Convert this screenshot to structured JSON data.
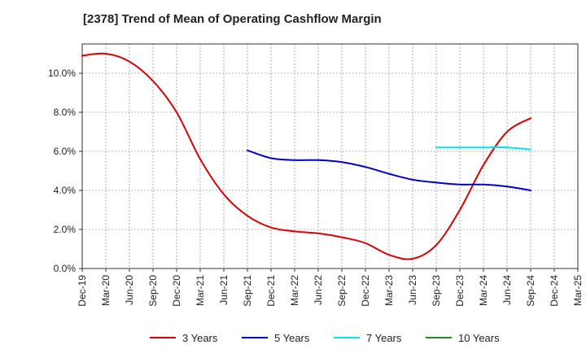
{
  "chart_data": {
    "type": "line",
    "title": "[2378]  Trend of Mean of Operating Cashflow Margin",
    "xlabel": "",
    "ylabel": "",
    "x_ticks": [
      "Dec-19",
      "Mar-20",
      "Jun-20",
      "Sep-20",
      "Dec-20",
      "Mar-21",
      "Jun-21",
      "Sep-21",
      "Dec-21",
      "Mar-22",
      "Jun-22",
      "Sep-22",
      "Dec-22",
      "Mar-23",
      "Jun-23",
      "Sep-23",
      "Dec-23",
      "Mar-24",
      "Jun-24",
      "Sep-24",
      "Dec-24",
      "Mar-25"
    ],
    "y_ticks": [
      "0.0%",
      "2.0%",
      "4.0%",
      "6.0%",
      "8.0%",
      "10.0%"
    ],
    "ylim": [
      0,
      11.5
    ],
    "grid": true,
    "legend_position": "bottom",
    "series": [
      {
        "name": "3 Years",
        "color": "#dd0000",
        "x": [
          "Dec-19",
          "Mar-20",
          "Jun-20",
          "Sep-20",
          "Dec-20",
          "Mar-21",
          "Jun-21",
          "Sep-21",
          "Dec-21",
          "Mar-22",
          "Jun-22",
          "Sep-22",
          "Dec-22",
          "Mar-23",
          "Jun-23",
          "Sep-23",
          "Dec-23",
          "Mar-24",
          "Jun-24",
          "Sep-24"
        ],
        "values": [
          10.9,
          11.0,
          10.6,
          9.6,
          8.0,
          5.6,
          3.8,
          2.7,
          2.1,
          1.9,
          1.8,
          1.6,
          1.3,
          0.7,
          0.5,
          1.2,
          3.0,
          5.3,
          7.0,
          7.7
        ]
      },
      {
        "name": "5 Years",
        "color": "#0000cc",
        "x": [
          "Sep-21",
          "Dec-21",
          "Mar-22",
          "Jun-22",
          "Sep-22",
          "Dec-22",
          "Mar-23",
          "Jun-23",
          "Sep-23",
          "Dec-23",
          "Mar-24",
          "Jun-24",
          "Sep-24"
        ],
        "values": [
          6.05,
          5.65,
          5.55,
          5.55,
          5.45,
          5.2,
          4.85,
          4.55,
          4.4,
          4.3,
          4.3,
          4.2,
          4.0
        ]
      },
      {
        "name": "7 Years",
        "color": "#00e5ee",
        "x": [
          "Sep-23",
          "Dec-23",
          "Mar-24",
          "Jun-24",
          "Sep-24"
        ],
        "values": [
          6.2,
          6.2,
          6.2,
          6.2,
          6.1
        ]
      },
      {
        "name": "10 Years",
        "color": "#228b22",
        "x": [],
        "values": []
      }
    ]
  }
}
